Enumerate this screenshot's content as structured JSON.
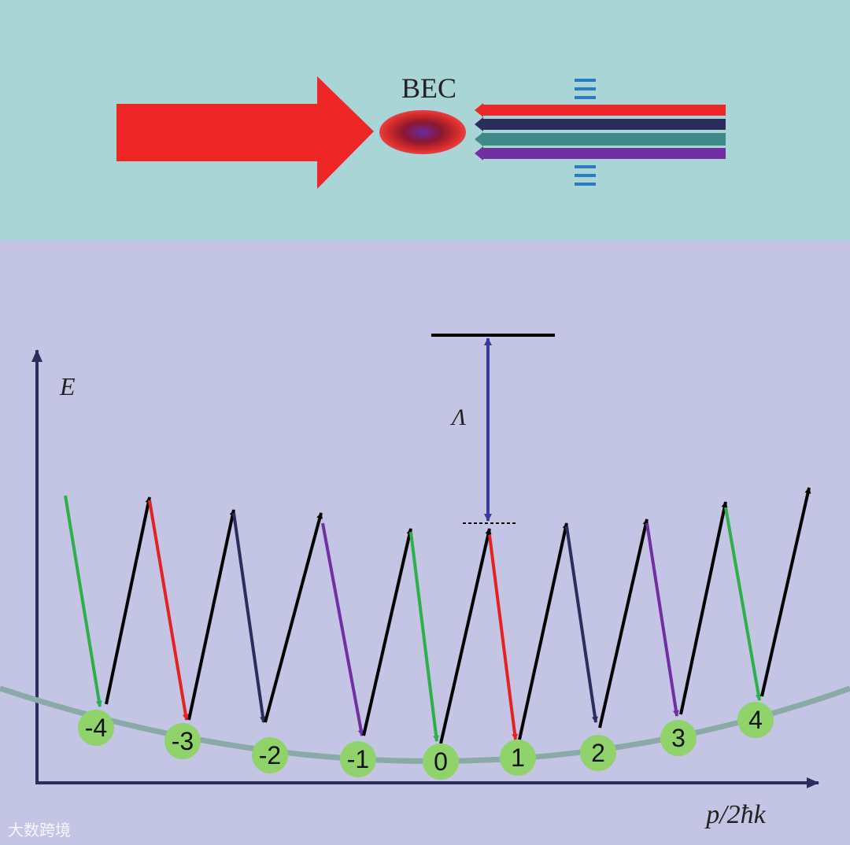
{
  "labels": {
    "bec": "BEC",
    "energy_axis": "E",
    "detuning": "Λ",
    "momentum_axis": "p/2ħk"
  },
  "nodes": [
    {
      "label": "-4"
    },
    {
      "label": "-3"
    },
    {
      "label": "-2"
    },
    {
      "label": "-1"
    },
    {
      "label": "0"
    },
    {
      "label": "1"
    },
    {
      "label": "2"
    },
    {
      "label": "3"
    },
    {
      "label": "4"
    }
  ],
  "watermark": "大数跨境"
}
